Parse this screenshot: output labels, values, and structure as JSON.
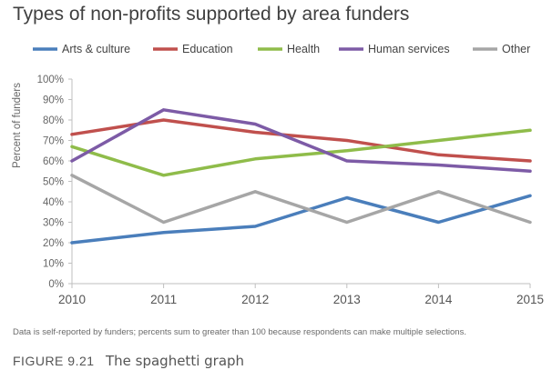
{
  "chart_data": {
    "type": "line",
    "title": "Types of non-profits supported by area funders",
    "ylabel": "Percent of funders",
    "xlabel": "",
    "x": [
      "2010",
      "2011",
      "2012",
      "2013",
      "2014",
      "2015"
    ],
    "yticks": [
      "0%",
      "10%",
      "20%",
      "30%",
      "40%",
      "50%",
      "60%",
      "70%",
      "80%",
      "90%",
      "100%"
    ],
    "ylim": [
      0,
      100
    ],
    "legend_position": "top",
    "grid": false,
    "series": [
      {
        "name": "Arts & culture",
        "color": "#4a7ebb",
        "values": [
          20,
          25,
          28,
          42,
          30,
          43
        ]
      },
      {
        "name": "Education",
        "color": "#c0504d",
        "values": [
          73,
          80,
          74,
          70,
          63,
          60
        ]
      },
      {
        "name": "Health",
        "color": "#8fbc4a",
        "values": [
          67,
          53,
          61,
          65,
          70,
          75
        ]
      },
      {
        "name": "Human services",
        "color": "#7d5ba6",
        "values": [
          60,
          85,
          78,
          60,
          58,
          55
        ]
      },
      {
        "name": "Other",
        "color": "#a6a6a6",
        "values": [
          53,
          30,
          45,
          30,
          45,
          30
        ]
      }
    ],
    "footnote": "Data is self-reported by funders; percents sum to greater than 100 because respondents can make multiple selections."
  },
  "caption": {
    "label": "FIGURE 9.21",
    "title": "The spaghetti graph"
  }
}
